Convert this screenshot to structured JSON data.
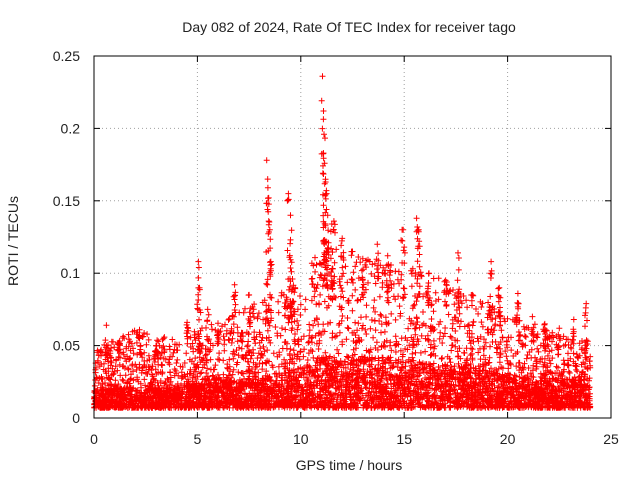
{
  "chart_data": {
    "type": "scatter",
    "title": "Day 082 of 2024, Rate Of TEC Index for receiver tago",
    "xlabel": "GPS time / hours",
    "ylabel": "ROTI / TECUs",
    "xlim": [
      0,
      25
    ],
    "ylim": [
      0,
      0.25
    ],
    "x_ticks": [
      0,
      5,
      10,
      15,
      20,
      25
    ],
    "x_tick_labels": [
      "0",
      "5",
      "10",
      "15",
      "20",
      "25"
    ],
    "y_ticks": [
      0,
      0.05,
      0.1,
      0.15,
      0.2,
      0.25
    ],
    "y_tick_labels": [
      "0",
      "0.05",
      "0.1",
      "0.15",
      "0.2",
      "0.25"
    ],
    "grid": true,
    "marker": "+",
    "color": "#ff0000",
    "series": [
      {
        "name": "ROTI",
        "data_range_x": [
          0,
          24
        ],
        "envelope": [
          {
            "x": 0,
            "base": 0.015,
            "top": 0.035
          },
          {
            "x": 2,
            "base": 0.015,
            "top": 0.045
          },
          {
            "x": 4,
            "base": 0.015,
            "top": 0.04
          },
          {
            "x": 6,
            "base": 0.02,
            "top": 0.05
          },
          {
            "x": 8,
            "base": 0.02,
            "top": 0.06
          },
          {
            "x": 10,
            "base": 0.025,
            "top": 0.07
          },
          {
            "x": 11,
            "base": 0.03,
            "top": 0.09
          },
          {
            "x": 12,
            "base": 0.03,
            "top": 0.085
          },
          {
            "x": 14,
            "base": 0.03,
            "top": 0.08
          },
          {
            "x": 16,
            "base": 0.028,
            "top": 0.075
          },
          {
            "x": 18,
            "base": 0.025,
            "top": 0.065
          },
          {
            "x": 20,
            "base": 0.022,
            "top": 0.055
          },
          {
            "x": 22,
            "base": 0.02,
            "top": 0.045
          },
          {
            "x": 24,
            "base": 0.02,
            "top": 0.04
          }
        ],
        "spikes": [
          {
            "x": 0.6,
            "y": 0.064
          },
          {
            "x": 1.2,
            "y": 0.052
          },
          {
            "x": 2.2,
            "y": 0.061
          },
          {
            "x": 3.0,
            "y": 0.05
          },
          {
            "x": 4.5,
            "y": 0.066
          },
          {
            "x": 5.05,
            "y": 0.108
          },
          {
            "x": 5.1,
            "y": 0.09
          },
          {
            "x": 5.5,
            "y": 0.075
          },
          {
            "x": 6.0,
            "y": 0.06
          },
          {
            "x": 6.8,
            "y": 0.092
          },
          {
            "x": 7.5,
            "y": 0.085
          },
          {
            "x": 8.35,
            "y": 0.178
          },
          {
            "x": 8.4,
            "y": 0.165
          },
          {
            "x": 8.45,
            "y": 0.152
          },
          {
            "x": 8.5,
            "y": 0.13
          },
          {
            "x": 8.55,
            "y": 0.108
          },
          {
            "x": 9.4,
            "y": 0.155
          },
          {
            "x": 9.5,
            "y": 0.14
          },
          {
            "x": 9.5,
            "y": 0.123
          },
          {
            "x": 9.6,
            "y": 0.096
          },
          {
            "x": 11.05,
            "y": 0.236
          },
          {
            "x": 11.1,
            "y": 0.212
          },
          {
            "x": 11.12,
            "y": 0.196
          },
          {
            "x": 11.15,
            "y": 0.176
          },
          {
            "x": 11.2,
            "y": 0.163
          },
          {
            "x": 11.25,
            "y": 0.155
          },
          {
            "x": 11.3,
            "y": 0.14
          },
          {
            "x": 11.5,
            "y": 0.134
          },
          {
            "x": 11.6,
            "y": 0.136
          },
          {
            "x": 12.0,
            "y": 0.124
          },
          {
            "x": 12.5,
            "y": 0.115
          },
          {
            "x": 13.0,
            "y": 0.11
          },
          {
            "x": 13.7,
            "y": 0.12
          },
          {
            "x": 14.2,
            "y": 0.112
          },
          {
            "x": 14.9,
            "y": 0.13
          },
          {
            "x": 15.0,
            "y": 0.118
          },
          {
            "x": 15.6,
            "y": 0.138
          },
          {
            "x": 15.7,
            "y": 0.13
          },
          {
            "x": 16.2,
            "y": 0.1
          },
          {
            "x": 17.0,
            "y": 0.095
          },
          {
            "x": 17.6,
            "y": 0.114
          },
          {
            "x": 18.3,
            "y": 0.085
          },
          {
            "x": 19.2,
            "y": 0.108
          },
          {
            "x": 19.6,
            "y": 0.09
          },
          {
            "x": 20.5,
            "y": 0.086
          },
          {
            "x": 21.2,
            "y": 0.07
          },
          {
            "x": 21.8,
            "y": 0.065
          },
          {
            "x": 22.5,
            "y": 0.062
          },
          {
            "x": 23.2,
            "y": 0.068
          },
          {
            "x": 23.8,
            "y": 0.079
          }
        ]
      }
    ]
  }
}
